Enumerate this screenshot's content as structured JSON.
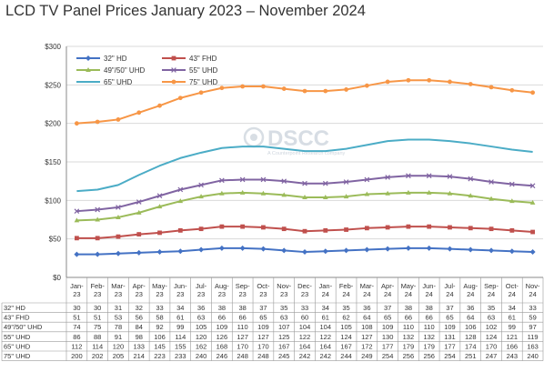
{
  "chart_data": {
    "type": "line",
    "title": "LCD TV Panel Prices January 2023 – November 2024",
    "watermark": "DSCC",
    "watermark_sub": "A Counterpoint Research company",
    "categories": [
      "Jan-23",
      "Feb-23",
      "Mar-23",
      "Apr-23",
      "May-23",
      "Jun-23",
      "Jul-23",
      "Aug-23",
      "Sep-23",
      "Oct-23",
      "Nov-23",
      "Dec-23",
      "Jan-24",
      "Feb-24",
      "Mar-24",
      "Apr-24",
      "May-24",
      "Jun-24",
      "Jul-24",
      "Aug-24",
      "Sep-24",
      "Oct-24",
      "Nov-24"
    ],
    "y_ticks": [
      "$0",
      "$50",
      "$100",
      "$150",
      "$200",
      "$250",
      "$300"
    ],
    "ylim": [
      0,
      300
    ],
    "grid": true,
    "legend_position": "top-left",
    "series": [
      {
        "name": "32\" HD",
        "color": "#4472C4",
        "marker": "diamond",
        "values": [
          30,
          30,
          31,
          32,
          33,
          34,
          36,
          38,
          38,
          37,
          35,
          33,
          34,
          35,
          36,
          37,
          38,
          38,
          37,
          36,
          35,
          34,
          33
        ]
      },
      {
        "name": "43\" FHD",
        "color": "#C0504D",
        "marker": "square",
        "values": [
          51,
          51,
          53,
          56,
          58,
          61,
          63,
          66,
          66,
          65,
          63,
          60,
          61,
          62,
          64,
          65,
          66,
          66,
          65,
          64,
          63,
          61,
          59
        ]
      },
      {
        "name": "49\"/50\" UHD",
        "color": "#9BBB59",
        "marker": "triangle",
        "values": [
          74,
          75,
          78,
          84,
          92,
          99,
          105,
          109,
          110,
          109,
          107,
          104,
          104,
          105,
          108,
          109,
          110,
          110,
          109,
          106,
          102,
          99,
          97
        ]
      },
      {
        "name": "55\" UHD",
        "color": "#8064A2",
        "marker": "x",
        "values": [
          86,
          88,
          91,
          98,
          106,
          114,
          120,
          126,
          127,
          127,
          125,
          122,
          122,
          124,
          127,
          130,
          132,
          132,
          131,
          128,
          124,
          121,
          119
        ]
      },
      {
        "name": "65\" UHD",
        "color": "#4BACC6",
        "marker": "none",
        "values": [
          112,
          114,
          120,
          133,
          145,
          155,
          162,
          168,
          170,
          170,
          167,
          164,
          164,
          167,
          172,
          177,
          179,
          179,
          177,
          174,
          170,
          166,
          163
        ]
      },
      {
        "name": "75\" UHD",
        "color": "#F79646",
        "marker": "circle",
        "values": [
          200,
          202,
          205,
          214,
          223,
          233,
          240,
          246,
          248,
          248,
          245,
          242,
          242,
          244,
          249,
          254,
          256,
          256,
          254,
          251,
          247,
          243,
          240
        ]
      }
    ]
  }
}
